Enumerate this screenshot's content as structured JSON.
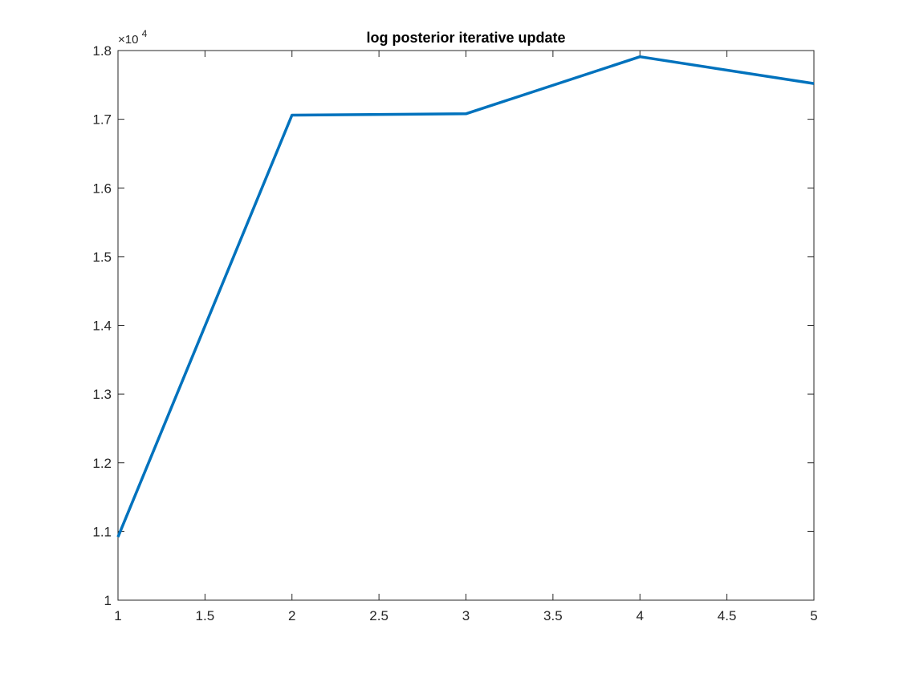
{
  "chart_data": {
    "type": "line",
    "title": "log posterior iterative update",
    "xlabel": "",
    "ylabel": "",
    "xlim": [
      1,
      5
    ],
    "ylim": [
      10000,
      18000
    ],
    "x_ticks": [
      1,
      1.5,
      2,
      2.5,
      3,
      3.5,
      4,
      4.5,
      5
    ],
    "x_tick_labels": [
      "1",
      "1.5",
      "2",
      "2.5",
      "3",
      "3.5",
      "4",
      "4.5",
      "5"
    ],
    "y_ticks": [
      10000,
      11000,
      12000,
      13000,
      14000,
      15000,
      16000,
      17000,
      18000
    ],
    "y_tick_labels": [
      "1",
      "1.1",
      "1.2",
      "1.3",
      "1.4",
      "1.5",
      "1.6",
      "1.7",
      "1.8"
    ],
    "y_exponent_label": "×10",
    "y_exponent_power": "4",
    "grid": false,
    "box": true,
    "series": [
      {
        "x": [
          1,
          2,
          3,
          4,
          5
        ],
        "values": [
          10920,
          17060,
          17080,
          17910,
          17520
        ],
        "color": "#0072BD"
      }
    ]
  }
}
